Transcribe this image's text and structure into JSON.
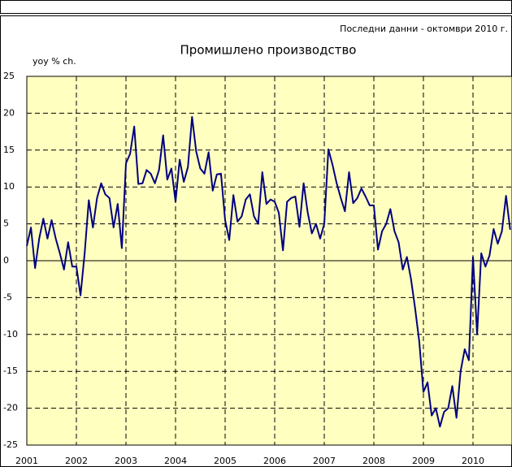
{
  "chart_data": {
    "type": "line",
    "title": "Промишлено производство",
    "subtitle": "Последни данни - октомври 2010 г.",
    "y_label": "yoy % ch.",
    "categories": [
      "2001",
      null,
      null,
      null,
      null,
      null,
      null,
      null,
      null,
      null,
      null,
      null,
      "2002",
      null,
      null,
      null,
      null,
      null,
      null,
      null,
      null,
      null,
      null,
      null,
      "2003",
      null,
      null,
      null,
      null,
      null,
      null,
      null,
      null,
      null,
      null,
      null,
      "2004",
      null,
      null,
      null,
      null,
      null,
      null,
      null,
      null,
      null,
      null,
      null,
      "2005",
      null,
      null,
      null,
      null,
      null,
      null,
      null,
      null,
      null,
      null,
      null,
      "2006",
      null,
      null,
      null,
      null,
      null,
      null,
      null,
      null,
      null,
      null,
      null,
      "2007",
      null,
      null,
      null,
      null,
      null,
      null,
      null,
      null,
      null,
      null,
      null,
      "2008",
      null,
      null,
      null,
      null,
      null,
      null,
      null,
      null,
      null,
      null,
      null,
      "2009",
      null,
      null,
      null,
      null,
      null,
      null,
      null,
      null,
      null,
      null,
      null,
      "2010",
      null,
      null,
      null,
      null,
      null,
      null,
      null,
      null,
      null
    ],
    "series": [
      {
        "name": "Промишлено производство",
        "color": "#000080",
        "values": [
          2,
          4.5,
          -1,
          3,
          5.7,
          3,
          5.5,
          3,
          1,
          -1.2,
          2.5,
          -0.8,
          -0.8,
          -4.7,
          1,
          8.2,
          4.5,
          8.5,
          10.5,
          9,
          8.5,
          4.5,
          7.7,
          1.7,
          13.2,
          14.5,
          18.2,
          10.4,
          10.5,
          12.3,
          11.8,
          10.5,
          12.3,
          17,
          11,
          12.5,
          8,
          13.7,
          10.7,
          12.7,
          19.5,
          14.8,
          12.5,
          11.8,
          14.7,
          9.5,
          11.7,
          11.8,
          5.5,
          2.8,
          8.9,
          5.3,
          6,
          8.3,
          9,
          6,
          5,
          12,
          7.7,
          8.3,
          8,
          6.5,
          1.4,
          8,
          8.5,
          8.7,
          4.6,
          10.5,
          6.5,
          3.7,
          5,
          3,
          5,
          15.1,
          13,
          10.5,
          8.5,
          6.7,
          12,
          7.8,
          8.5,
          9.8,
          8.7,
          7.5,
          7.5,
          1.5,
          4,
          5,
          7,
          4,
          2.5,
          -1.2,
          0.5,
          -2.5,
          -6.5,
          -11,
          -17.8,
          -16.5,
          -21,
          -20,
          -22.5,
          -20.5,
          -20,
          -17,
          -21.3,
          -15,
          -12,
          -13.5,
          0.5,
          -10,
          1,
          -0.8,
          0.7,
          4.3,
          2.3,
          4,
          8.8,
          4.2
        ]
      }
    ],
    "ylim": [
      -25,
      25
    ],
    "yticks": [
      25,
      20,
      15,
      10,
      5,
      0,
      -5,
      -10,
      -15,
      -20,
      -25
    ],
    "grid": true
  }
}
